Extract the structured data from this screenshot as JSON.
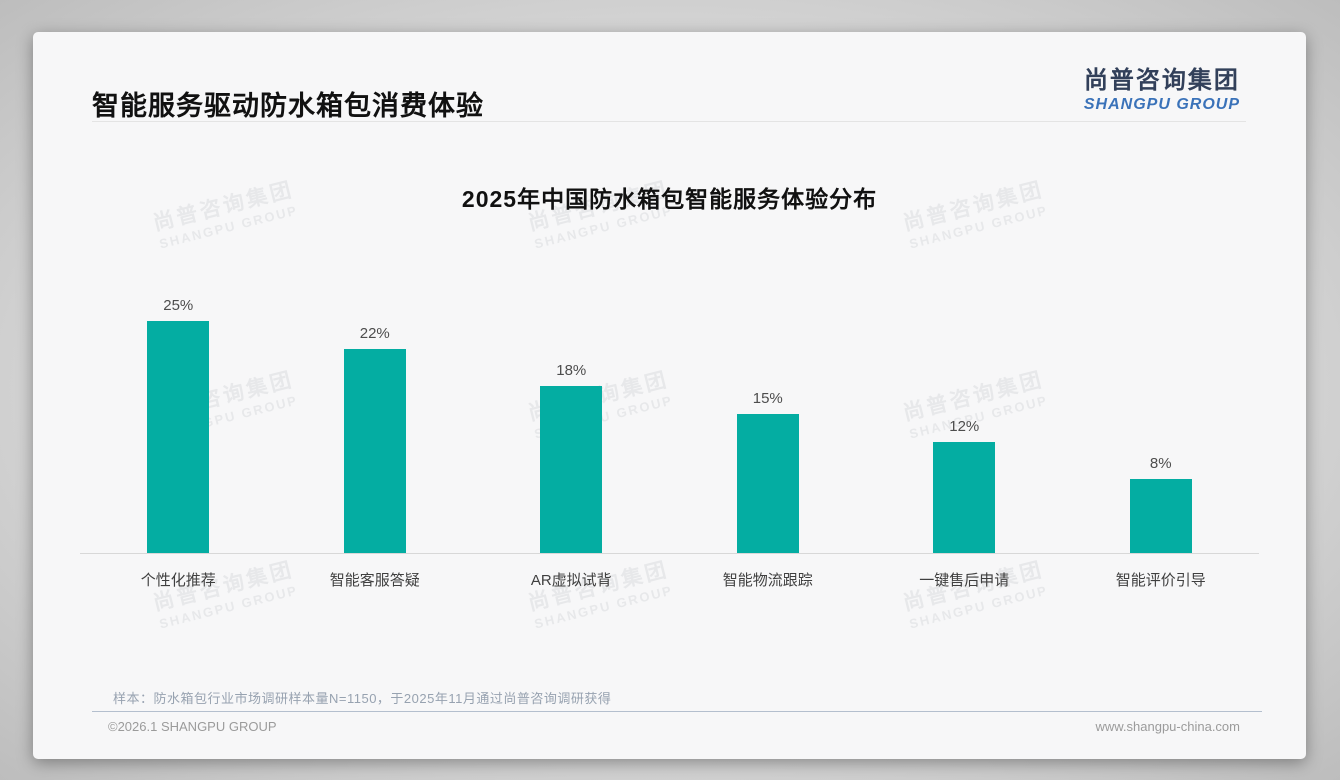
{
  "page": {
    "header_title": "智能服务驱动防水箱包消费体验",
    "logo": {
      "cn": "尚普咨询集团",
      "en": "SHANGPU GROUP"
    },
    "watermark": {
      "cn": "尚普咨询集团",
      "en": "SHANGPU GROUP"
    },
    "footnote": "样本：防水箱包行业市场调研样本量N=1150，于2025年11月通过尚普咨询调研获得",
    "footer_left": "©2026.1 SHANGPU GROUP",
    "footer_right": "www.shangpu-china.com"
  },
  "colors": {
    "bar": "#04ada2",
    "logo_cn": "#32405a",
    "logo_en": "#3a72b9",
    "axis_line": "#d8d8d8"
  },
  "chart_data": {
    "type": "bar",
    "title": "2025年中国防水箱包智能服务体验分布",
    "categories": [
      "个性化推荐",
      "智能客服答疑",
      "AR虚拟试背",
      "智能物流跟踪",
      "一键售后申请",
      "智能评价引导"
    ],
    "values": [
      25,
      22,
      18,
      15,
      12,
      8
    ],
    "unit": "%",
    "xlabel": "",
    "ylabel": "",
    "ylim": [
      0,
      25
    ],
    "grid": false,
    "legend": false,
    "bar_color": "#04ada2",
    "value_labels_shown": true
  }
}
